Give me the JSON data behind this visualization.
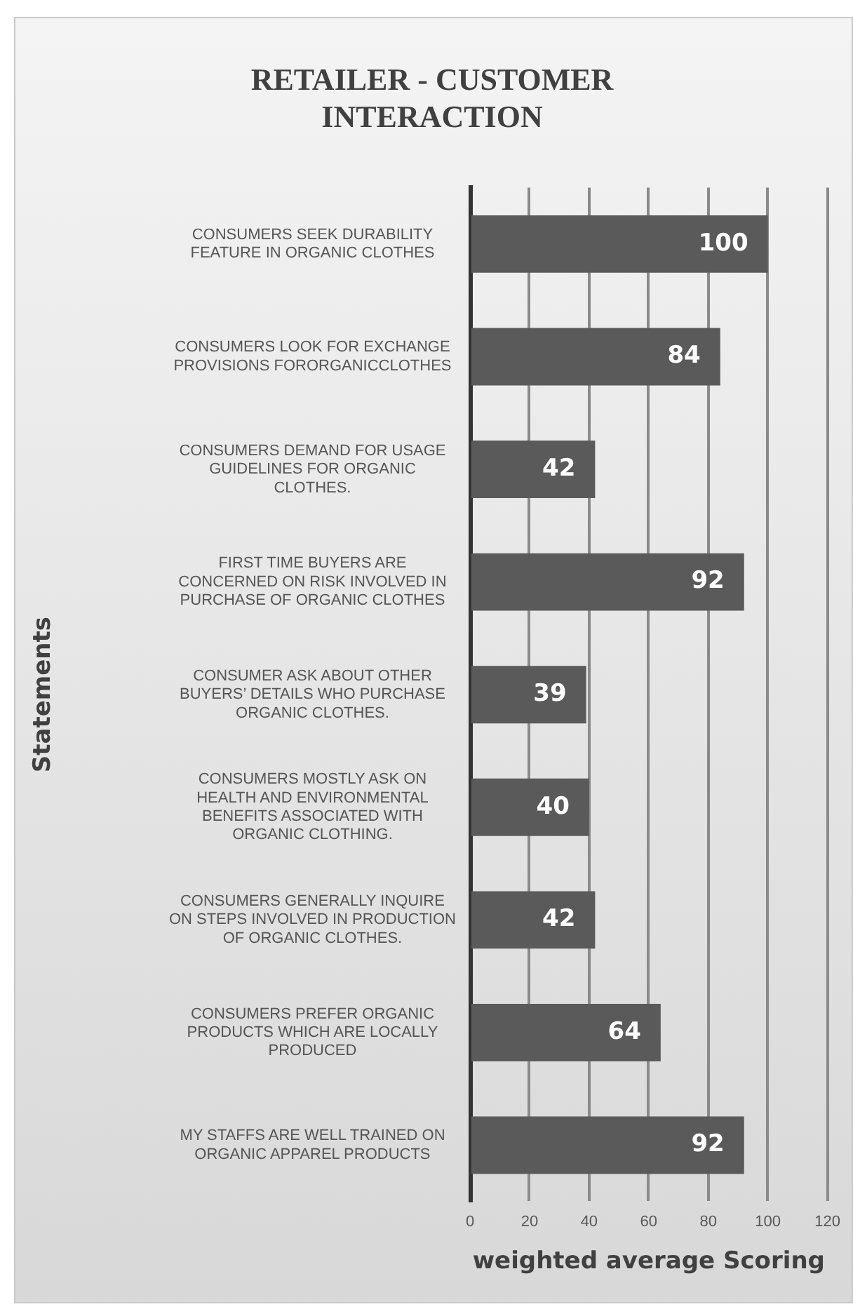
{
  "chart_data": {
    "type": "bar",
    "orientation": "horizontal",
    "title": "RETAILER - CUSTOMER INTERACTION",
    "xlabel": "weighted average Scoring",
    "ylabel": "Statements",
    "categories": [
      "CONSUMERS SEEK DURABILITY FEATURE IN ORGANIC CLOTHES",
      "CONSUMERS LOOK FOR EXCHANGE PROVISIONS FORORGANICCLOTHES",
      "CONSUMERS DEMAND FOR USAGE GUIDELINES FOR ORGANIC CLOTHES.",
      "FIRST TIME BUYERS ARE CONCERNED ON RISK INVOLVED IN PURCHASE OF ORGANIC CLOTHES",
      "CONSUMER ASK ABOUT OTHER BUYERS’ DETAILS WHO PURCHASE ORGANIC CLOTHES.",
      "CONSUMERS MOSTLY ASK ON HEALTH AND ENVIRONMENTAL BENEFITS ASSOCIATED WITH ORGANIC CLOTHING.",
      "CONSUMERS GENERALLY INQUIRE ON STEPS INVOLVED IN PRODUCTION OF ORGANIC CLOTHES.",
      "CONSUMERS PREFER ORGANIC PRODUCTS WHICH ARE LOCALLY PRODUCED",
      "MY STAFFS ARE WELL TRAINED ON ORGANIC APPAREL PRODUCTS"
    ],
    "values": [
      100,
      84,
      42,
      92,
      39,
      40,
      42,
      64,
      92
    ],
    "color": "#5a5a5a",
    "xlim": [
      0,
      120
    ],
    "xticks": [
      0,
      20,
      40,
      60,
      80,
      100,
      120
    ],
    "grid": "x",
    "legend": false,
    "data_labels": true
  }
}
